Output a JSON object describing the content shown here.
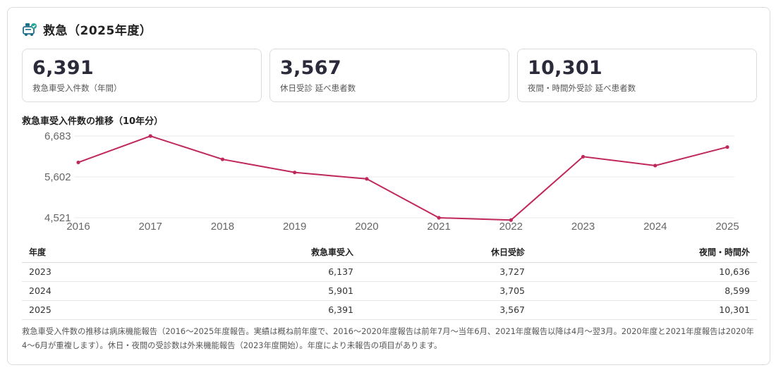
{
  "header": {
    "title": "救急（2025年度）",
    "icon": "ambulance-icon"
  },
  "stats": [
    {
      "value": "6,391",
      "label": "救急車受入件数（年間）"
    },
    {
      "value": "3,567",
      "label": "休日受診 延べ患者数"
    },
    {
      "value": "10,301",
      "label": "夜間・時間外受診 延べ患者数"
    }
  ],
  "chart_title": "救急車受入件数の推移（10年分）",
  "chart_data": {
    "type": "line",
    "title": "救急車受入件数の推移（10年分）",
    "categories": [
      "2016",
      "2017",
      "2018",
      "2019",
      "2020",
      "2021",
      "2022",
      "2023",
      "2024",
      "2025"
    ],
    "series": [
      {
        "values": [
          5985,
          6683,
          6067,
          5720,
          5550,
          4521,
          4460,
          6137,
          5901,
          6391
        ]
      }
    ],
    "yticks": [
      "6,683",
      "5,602",
      "4,521"
    ],
    "ytick_values": [
      6683,
      5602,
      4521
    ],
    "ylim": [
      4521,
      6683
    ],
    "grid": true,
    "color": "#c0275a"
  },
  "table": {
    "headers": [
      "年度",
      "救急車受入",
      "休日受診",
      "夜間・時間外"
    ],
    "rows": [
      [
        "2023",
        "6,137",
        "3,727",
        "10,636"
      ],
      [
        "2024",
        "5,901",
        "3,705",
        "8,599"
      ],
      [
        "2025",
        "6,391",
        "3,567",
        "10,301"
      ]
    ]
  },
  "note": "救急車受入件数の推移は病床機能報告（2016〜2025年度報告。実績は概ね前年度で、2016〜2020年度報告は前年7月〜当年6月、2021年度報告以降は4月〜翌3月。2020年度と2021年度報告は2020年4〜6月が重複します）。休日・夜間の受診数は外来機能報告（2023年度開始）。年度により未報告の項目があります。"
}
